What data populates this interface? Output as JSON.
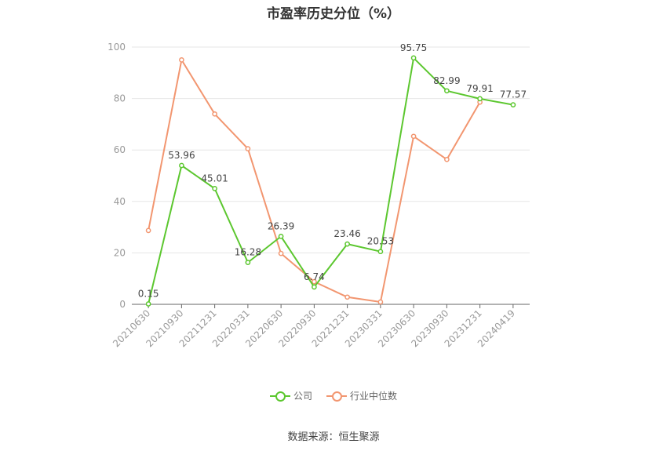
{
  "chart_data": {
    "type": "line",
    "title": "市盈率历史分位（%）",
    "categories": [
      "20210630",
      "20210930",
      "20211231",
      "20220331",
      "20220630",
      "20220930",
      "20221231",
      "20230331",
      "20230630",
      "20230930",
      "20231231",
      "20240419"
    ],
    "ylim": [
      0,
      100
    ],
    "yticks": [
      0,
      20,
      40,
      60,
      80,
      100
    ],
    "grid": true,
    "legend_position": "bottom",
    "series": [
      {
        "name": "公司",
        "color": "#5cc72f",
        "values": [
          0.15,
          53.96,
          45.01,
          16.28,
          26.39,
          6.74,
          23.46,
          20.53,
          95.75,
          82.99,
          79.91,
          77.57
        ],
        "labels": [
          "0.15",
          "53.96",
          "45.01",
          "16.28",
          "26.39",
          "6.74",
          "23.46",
          "20.53",
          "95.75",
          "82.99",
          "79.91",
          "77.57"
        ]
      },
      {
        "name": "行业中位数",
        "color": "#f29670",
        "values": [
          28.7,
          95.0,
          74.0,
          60.5,
          19.8,
          8.8,
          2.8,
          0.9,
          65.3,
          56.3,
          78.6,
          null
        ]
      }
    ]
  },
  "legend": {
    "company_label": "公司",
    "industry_label": "行业中位数"
  },
  "source_text": "数据来源：恒生聚源"
}
